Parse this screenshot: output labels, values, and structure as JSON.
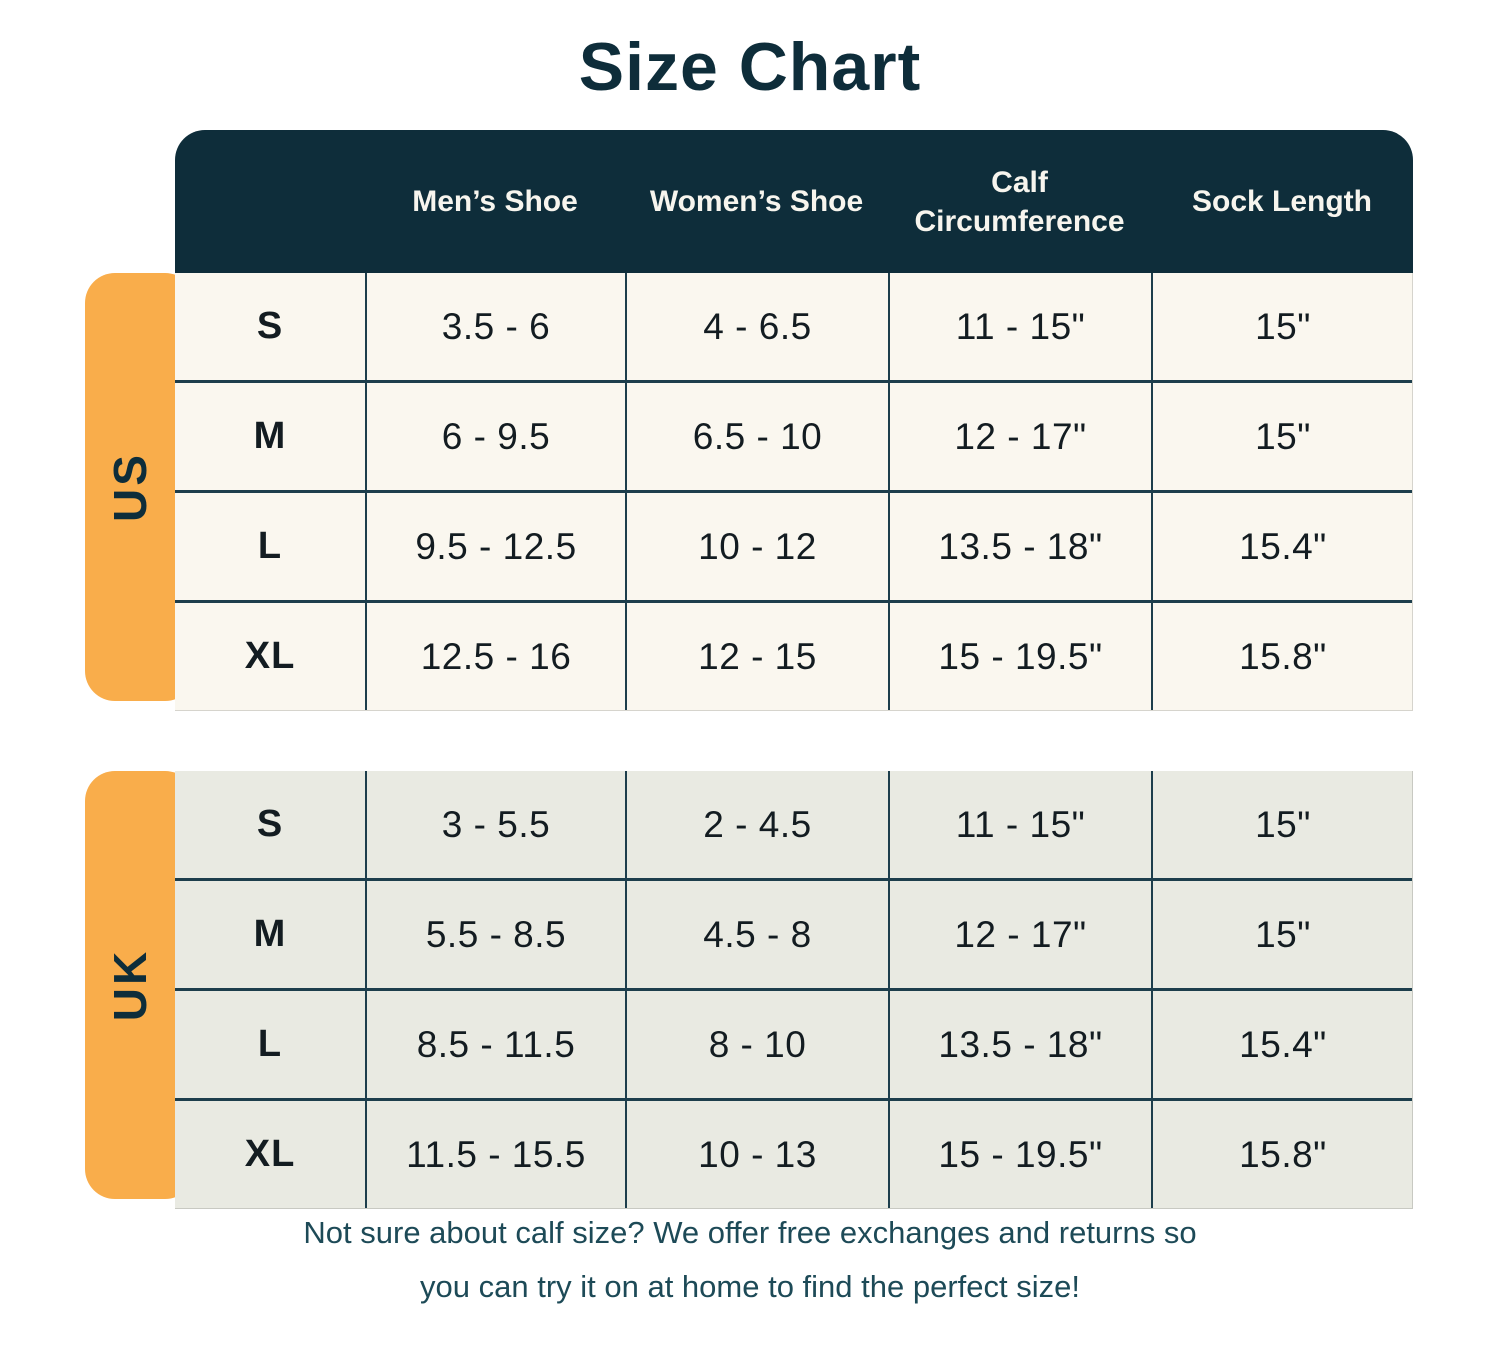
{
  "title": "Size Chart",
  "chart_data": {
    "type": "table",
    "title": "Size Chart",
    "column_headers": [
      "Men’s Shoe",
      "Women’s Shoe",
      "Calf Circumference",
      "Sock Length"
    ],
    "sections": [
      {
        "region": "US",
        "rows": [
          [
            "S",
            "3.5 - 6",
            "4 - 6.5",
            "11 - 15\"",
            "15\""
          ],
          [
            "M",
            "6 - 9.5",
            "6.5 - 10",
            "12 - 17\"",
            "15\""
          ],
          [
            "L",
            "9.5 - 12.5",
            "10 - 12",
            "13.5 - 18\"",
            "15.4\""
          ],
          [
            "XL",
            "12.5 - 16",
            "12 - 15",
            "15 - 19.5\"",
            "15.8\""
          ]
        ]
      },
      {
        "region": "UK",
        "rows": [
          [
            "S",
            "3 - 5.5",
            "2 - 4.5",
            "11 - 15\"",
            "15\""
          ],
          [
            "M",
            "5.5 - 8.5",
            "4.5 - 8",
            "12 - 17\"",
            "15\""
          ],
          [
            "L",
            "8.5 - 11.5",
            "8 - 10",
            "13.5 - 18\"",
            "15.4\""
          ],
          [
            "XL",
            "11.5 - 15.5",
            "10 - 13",
            "15 - 19.5\"",
            "15.8\""
          ]
        ]
      }
    ]
  },
  "footer": {
    "lines": [
      "Not sure about calf size? We offer free exchanges and returns so",
      "you can try it on at home to find the perfect size!"
    ]
  },
  "colors": {
    "navy": "#0E2D3A",
    "orange": "#F9AD4B",
    "us_row_bg": "#FAF7EF",
    "uk_row_bg": "#E9EAE2",
    "grid_line": "#1D3E4C",
    "header_text": "#F7F5EE",
    "cell_text": "#131C21",
    "footer_text": "#1D4A57"
  }
}
